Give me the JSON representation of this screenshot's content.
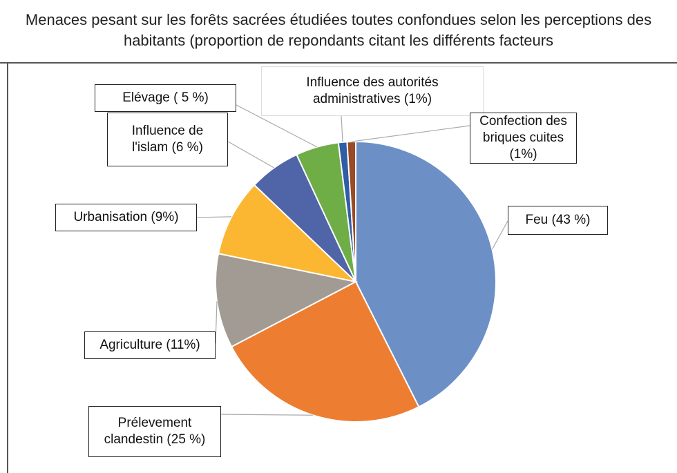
{
  "chart_data": {
    "type": "pie",
    "title": "Menaces pesant sur les forêts sacrées étudiées toutes confondues selon les perceptions des habitants (proportion de repondants citant les différents facteurs",
    "categories": [
      "Feu (43 %)",
      "Prélevement\nclandestin (25 %)",
      "Agriculture (11%)",
      "Urbanisation (9%)",
      "Influence de\nl'islam (6 %)",
      "Elévage ( 5 %)",
      "Influence des autorités\nadministratives (1%)",
      "Confection des\nbriques cuites\n(1%)"
    ],
    "values": [
      43,
      25,
      11,
      9,
      6,
      5,
      1,
      1
    ],
    "colors": [
      "#6c8fc6",
      "#ed7d31",
      "#a19b93",
      "#fbb732",
      "#5064a8",
      "#6fad47",
      "#2f5da6",
      "#9c4a23"
    ]
  }
}
